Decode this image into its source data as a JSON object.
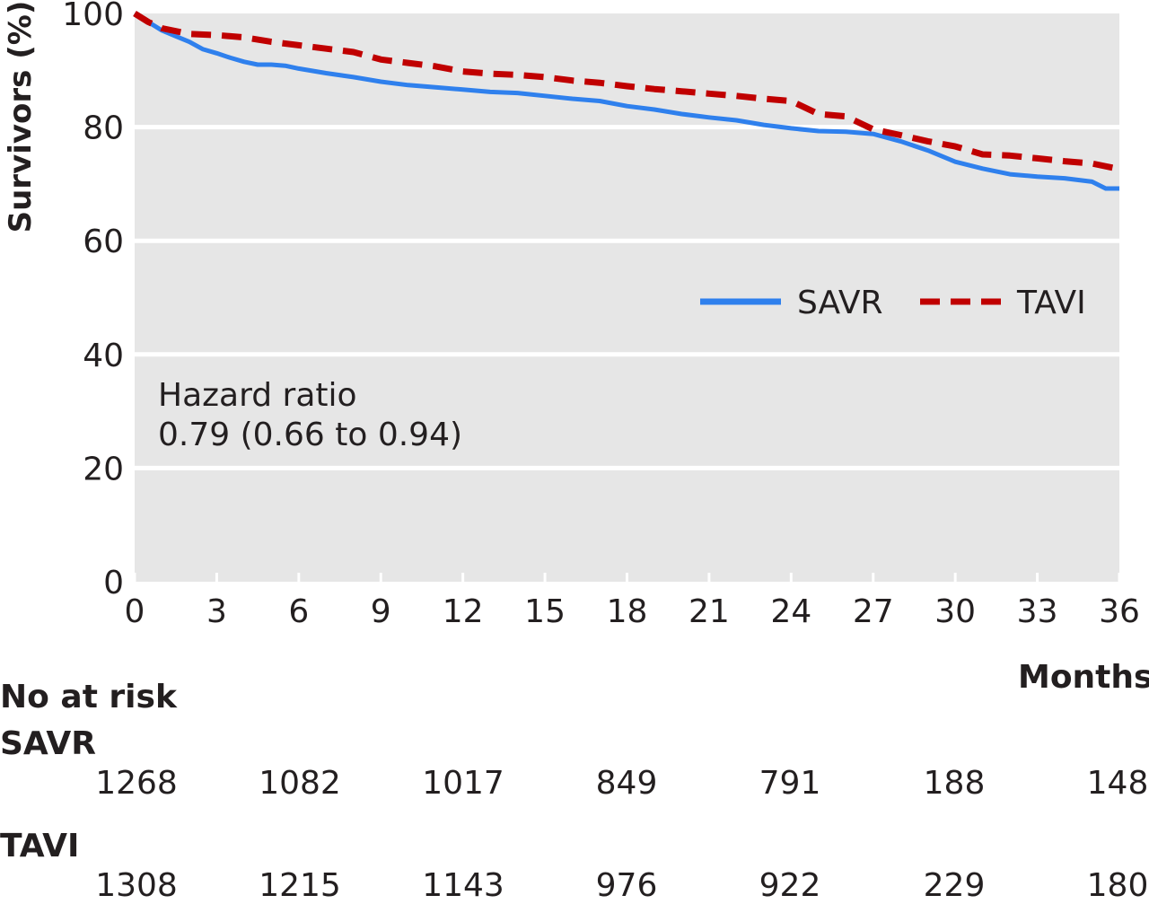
{
  "chart_data": {
    "type": "line",
    "title": "",
    "xlabel": "Months",
    "ylabel": "Survivors (%)",
    "xlim": [
      0,
      36
    ],
    "ylim": [
      0,
      100
    ],
    "x_ticks": [
      "0",
      "3",
      "6",
      "9",
      "12",
      "15",
      "18",
      "21",
      "24",
      "27",
      "30",
      "33",
      "36"
    ],
    "y_ticks": [
      "0",
      "20",
      "40",
      "60",
      "80",
      "100"
    ],
    "grid": true,
    "legend_position": "middle-right",
    "series": [
      {
        "name": "SAVR",
        "color": "#2f80ed",
        "style": "solid",
        "points": [
          [
            0,
            100
          ],
          [
            0.5,
            98.5
          ],
          [
            1,
            97
          ],
          [
            1.5,
            96
          ],
          [
            2,
            95
          ],
          [
            2.5,
            93.7
          ],
          [
            3,
            93
          ],
          [
            3.5,
            92.2
          ],
          [
            4,
            91.5
          ],
          [
            4.5,
            91
          ],
          [
            5,
            91
          ],
          [
            5.5,
            90.8
          ],
          [
            6,
            90.3
          ],
          [
            7,
            89.5
          ],
          [
            8,
            88.8
          ],
          [
            9,
            88
          ],
          [
            10,
            87.4
          ],
          [
            11,
            87
          ],
          [
            12,
            86.6
          ],
          [
            13,
            86.2
          ],
          [
            14,
            86
          ],
          [
            15,
            85.5
          ],
          [
            16,
            85
          ],
          [
            17,
            84.6
          ],
          [
            18,
            83.7
          ],
          [
            19,
            83.1
          ],
          [
            20,
            82.3
          ],
          [
            21,
            81.7
          ],
          [
            22,
            81.2
          ],
          [
            23,
            80.4
          ],
          [
            24,
            79.8
          ],
          [
            25,
            79.3
          ],
          [
            26,
            79.2
          ],
          [
            27,
            78.8
          ],
          [
            28,
            77.5
          ],
          [
            29,
            75.9
          ],
          [
            30,
            73.9
          ],
          [
            31,
            72.7
          ],
          [
            32,
            71.7
          ],
          [
            33,
            71.3
          ],
          [
            34,
            71
          ],
          [
            35,
            70.4
          ],
          [
            35.5,
            69.2
          ],
          [
            36,
            69.2
          ]
        ]
      },
      {
        "name": "TAVI",
        "color": "#c00000",
        "style": "dashed",
        "points": [
          [
            0,
            100
          ],
          [
            0.5,
            98.5
          ],
          [
            1,
            97.4
          ],
          [
            2,
            96.4
          ],
          [
            3,
            96.2
          ],
          [
            4,
            95.8
          ],
          [
            5,
            95
          ],
          [
            6,
            94.4
          ],
          [
            7,
            93.8
          ],
          [
            8,
            93.2
          ],
          [
            9,
            91.9
          ],
          [
            10,
            91.3
          ],
          [
            11,
            90.7
          ],
          [
            12,
            89.8
          ],
          [
            13,
            89.4
          ],
          [
            14,
            89.2
          ],
          [
            15,
            88.8
          ],
          [
            16,
            88.2
          ],
          [
            17,
            87.8
          ],
          [
            18,
            87.2
          ],
          [
            19,
            86.7
          ],
          [
            20,
            86.3
          ],
          [
            21,
            85.9
          ],
          [
            22,
            85.5
          ],
          [
            23,
            85
          ],
          [
            24,
            84.6
          ],
          [
            25,
            82.3
          ],
          [
            26,
            81.9
          ],
          [
            27,
            79.6
          ],
          [
            28,
            78.6
          ],
          [
            29,
            77.5
          ],
          [
            30,
            76.6
          ],
          [
            31,
            75.2
          ],
          [
            32,
            75
          ],
          [
            33,
            74.5
          ],
          [
            34,
            74
          ],
          [
            35,
            73.6
          ],
          [
            36,
            72.6
          ]
        ]
      }
    ],
    "legend": [
      {
        "label": "SAVR",
        "color": "#2f80ed",
        "style": "solid"
      },
      {
        "label": "TAVI",
        "color": "#c00000",
        "style": "dashed"
      }
    ],
    "annotation": {
      "line1": "Hazard ratio",
      "line2": "0.79 (0.66 to 0.94)"
    },
    "background_color": "#e6e6e6",
    "grid_color": "#ffffff"
  },
  "risk_table": {
    "title": "No at risk",
    "rows": [
      {
        "group": "SAVR",
        "values": [
          "1268",
          "1082",
          "1017",
          "849",
          "791",
          "188",
          "148"
        ]
      },
      {
        "group": "TAVI",
        "values": [
          "1308",
          "1215",
          "1143",
          "976",
          "922",
          "229",
          "180"
        ]
      }
    ]
  }
}
